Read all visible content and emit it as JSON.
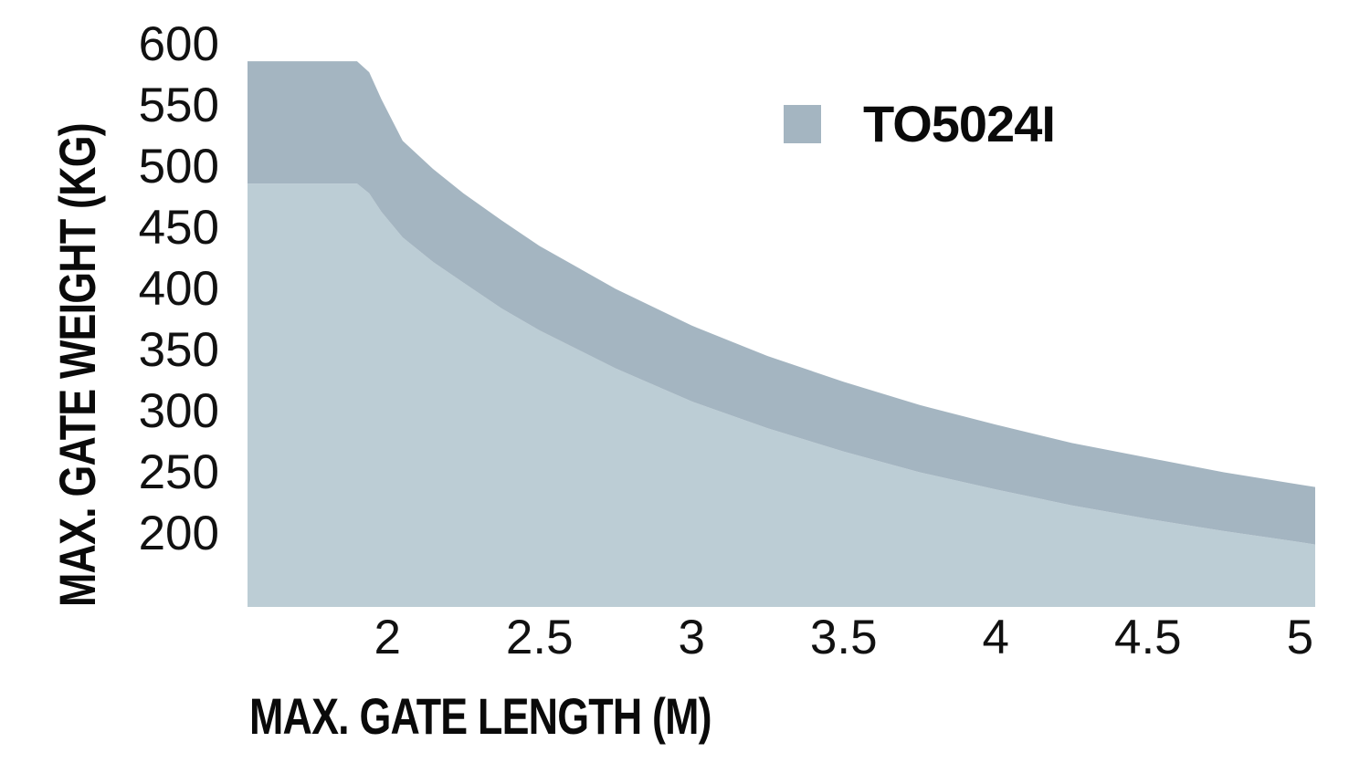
{
  "chart_data": {
    "type": "area",
    "title": "",
    "xlabel": "MAX. GATE LENGTH (M)",
    "ylabel": "MAX. GATE WEIGHT (KG)",
    "legend": [
      {
        "label": "TO5024I",
        "color": "#a4b5c1"
      }
    ],
    "colors": {
      "upper_band": "#a4b5c1",
      "lower_band": "#bccdd5",
      "text": "#111111",
      "background": "#ffffff"
    },
    "grid": false,
    "axis_lines": false,
    "legend_position": "top-right-inside",
    "x_ticks": [
      "2",
      "2.5",
      "3",
      "3.5",
      "4",
      "4.5",
      "5"
    ],
    "x_tick_values": [
      2,
      2.5,
      3,
      3.5,
      4,
      4.5,
      5
    ],
    "y_ticks": [
      "600",
      "550",
      "500",
      "450",
      "400",
      "350",
      "300",
      "250",
      "200"
    ],
    "y_tick_values": [
      600,
      550,
      500,
      450,
      400,
      350,
      300,
      250,
      200
    ],
    "xlim": [
      1.54,
      5.05
    ],
    "ylim": [
      139,
      600
    ],
    "series": {
      "name": "TO5024I",
      "description": "Upper curve = top of dark band (max gate weight, kg); lower curve = boundary between dark and light bands; light band extends down to chart baseline.",
      "x": [
        1.54,
        1.9,
        1.94,
        1.98,
        2.05,
        2.15,
        2.25,
        2.375,
        2.5,
        2.75,
        3.0,
        3.25,
        3.5,
        3.75,
        4.0,
        4.25,
        4.5,
        4.75,
        5.0,
        5.05
      ],
      "upper": [
        585,
        585,
        576,
        554,
        520,
        497,
        477,
        455,
        434,
        399,
        369,
        344,
        323,
        304,
        288,
        273,
        261,
        249,
        239,
        237
      ],
      "lower": [
        485,
        485,
        477,
        462,
        441,
        421,
        404,
        383,
        365,
        334,
        307,
        285,
        266,
        249,
        235,
        222,
        211,
        201,
        192,
        190
      ],
      "baseline": 139
    }
  }
}
